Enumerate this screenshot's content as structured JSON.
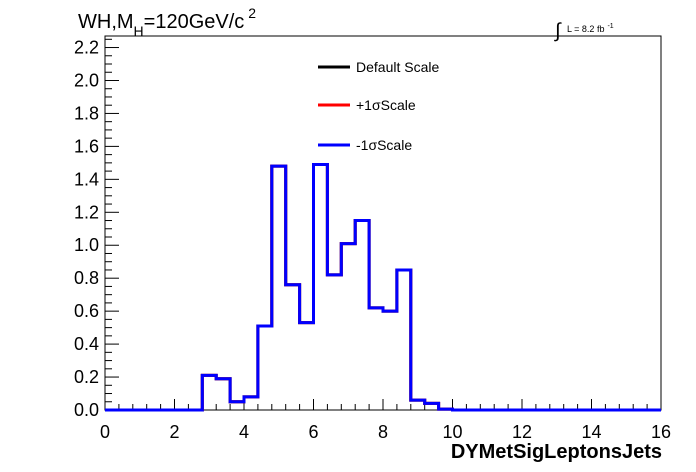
{
  "chart_data": {
    "type": "line",
    "title": {
      "main": "WH,M",
      "sub": "H",
      "mid": "=120GeV/c",
      "sup": "2"
    },
    "luminosity": {
      "integral_symbol": "∫",
      "text": "L = 8.2 fb",
      "sup": "-1"
    },
    "xlabel": "DYMetSigLeptonsJets",
    "ylabel": "",
    "xlim": [
      0,
      16
    ],
    "ylim": [
      0,
      2.27
    ],
    "x_ticks": [
      "0",
      "2",
      "4",
      "6",
      "8",
      "10",
      "12",
      "14",
      "16"
    ],
    "y_ticks": [
      "0.0",
      "0.2",
      "0.4",
      "0.6",
      "0.8",
      "1.0",
      "1.2",
      "1.4",
      "1.6",
      "1.8",
      "2.0",
      "2.2"
    ],
    "grid": false,
    "legend_position": "top-center",
    "bin_edges": [
      0,
      0.4,
      0.8,
      1.2,
      1.6,
      2.0,
      2.4,
      2.8,
      3.2,
      3.6,
      4.0,
      4.4,
      4.8,
      5.2,
      5.6,
      6.0,
      6.4,
      6.8,
      7.2,
      7.6,
      8.0,
      8.4,
      8.8,
      9.2,
      9.6,
      10.0,
      10.4,
      10.8,
      11.2,
      11.6,
      12.0,
      12.4,
      12.8,
      13.2,
      13.6,
      14.0,
      14.4,
      14.8,
      15.2,
      15.6,
      16.0
    ],
    "series": [
      {
        "name": "Default Scale",
        "color": "#000000",
        "values": [
          0,
          0,
          0,
          0,
          0,
          0,
          0,
          0.21,
          0.19,
          0.05,
          0.08,
          0.51,
          1.48,
          0.76,
          0.53,
          1.49,
          0.82,
          1.01,
          1.15,
          0.62,
          0.6,
          0.85,
          0.06,
          0.04,
          0.005,
          0,
          0,
          0,
          0,
          0,
          0,
          0,
          0,
          0,
          0,
          0,
          0,
          0,
          0,
          0
        ]
      },
      {
        "name": "+1σScale",
        "color": "#ff0000",
        "values": [
          0,
          0,
          0,
          0,
          0,
          0,
          0,
          0.21,
          0.19,
          0.05,
          0.08,
          0.51,
          1.48,
          0.76,
          0.53,
          1.49,
          0.82,
          1.01,
          1.15,
          0.62,
          0.6,
          0.85,
          0.06,
          0.04,
          0.005,
          0,
          0,
          0,
          0,
          0,
          0,
          0,
          0,
          0,
          0,
          0,
          0,
          0,
          0,
          0
        ]
      },
      {
        "name": "-1σScale",
        "color": "#0000ff",
        "values": [
          0,
          0,
          0,
          0,
          0,
          0,
          0,
          0.21,
          0.19,
          0.05,
          0.08,
          0.51,
          1.48,
          0.76,
          0.53,
          1.49,
          0.82,
          1.01,
          1.15,
          0.62,
          0.6,
          0.85,
          0.06,
          0.04,
          0.005,
          0,
          0,
          0,
          0,
          0,
          0,
          0,
          0,
          0,
          0,
          0,
          0,
          0,
          0,
          0
        ]
      }
    ]
  }
}
